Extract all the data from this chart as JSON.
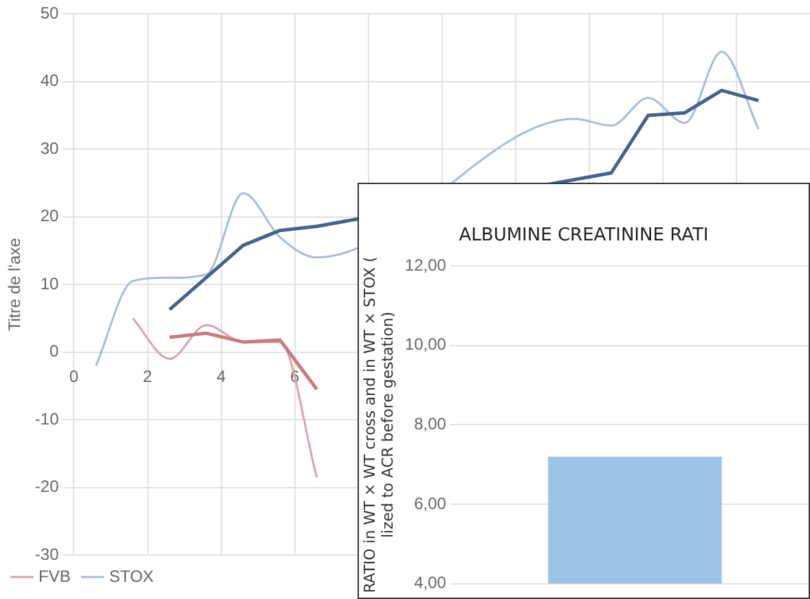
{
  "chart_data": [
    {
      "type": "line",
      "ylabel": "Titre de l'axe",
      "xlim": [
        0,
        20
      ],
      "ylim": [
        -30,
        50
      ],
      "xticks": [
        0,
        2,
        4,
        6,
        {
          "value": 8,
          "label": null
        },
        {
          "value": 10,
          "label": null
        },
        {
          "value": 12,
          "label": null
        },
        {
          "value": 14,
          "label": null
        },
        {
          "value": 16,
          "label": null
        },
        {
          "value": 18,
          "label": null
        }
      ],
      "yticks": [
        -30,
        -20,
        -10,
        0,
        10,
        20,
        30,
        40,
        50
      ],
      "grid": true,
      "legend": "bottom left",
      "marker": "none",
      "line_style": "solid",
      "series": [
        {
          "name": "FVB",
          "color": "#d9a3a8",
          "x": [
            1.6,
            2.6,
            3.6,
            4.6,
            5.6,
            6.6
          ],
          "values": [
            5,
            -1,
            4,
            1.5,
            1.5,
            -18.5
          ]
        },
        {
          "name": "STOX",
          "color": "#a9bcd4",
          "x": [
            0.6,
            1.6,
            2.6,
            3.6,
            4.6,
            5.6,
            6.6,
            13.6,
            14.6,
            15.6,
            16.6,
            17.6,
            18.6
          ],
          "values": [
            -2,
            10.5,
            11,
            11.5,
            23.5,
            17,
            14,
            34.5,
            33.5,
            37.6,
            33.9,
            44.4,
            33
          ]
        },
        {
          "color": "#c77a80",
          "x": [
            2.6,
            3.6,
            4.6,
            5.6,
            6.6
          ],
          "values": [
            2.2,
            2.8,
            1.5,
            1.8,
            -5.5
          ]
        },
        {
          "color": "#44628c",
          "x": [
            2.6,
            4.6,
            5.6,
            6.6,
            14.6,
            15.6,
            16.6,
            17.6,
            18.6
          ],
          "values": [
            6.3,
            15.8,
            18,
            18.6,
            26.5,
            35,
            35.4,
            38.7,
            37.2
          ]
        }
      ]
    },
    {
      "type": "bar",
      "title": "ALBUMINE CREATININE RATI",
      "ylabel": "RATIO in WT × WT cross and in WT × STOX (\nlized to ACR before gestation)",
      "categories": [
        null
      ],
      "values": [
        7.2
      ],
      "color": "#9dc3e6",
      "ylim": [
        4,
        12
      ],
      "yticks": [
        {
          "value": 4,
          "label": "4,00"
        },
        {
          "value": 6,
          "label": "6,00"
        },
        {
          "value": 8,
          "label": "8,00"
        },
        {
          "value": 10,
          "label": "10,00"
        },
        {
          "value": 12,
          "label": "12,00"
        }
      ],
      "grid": "y",
      "tick_labels": "y"
    }
  ]
}
